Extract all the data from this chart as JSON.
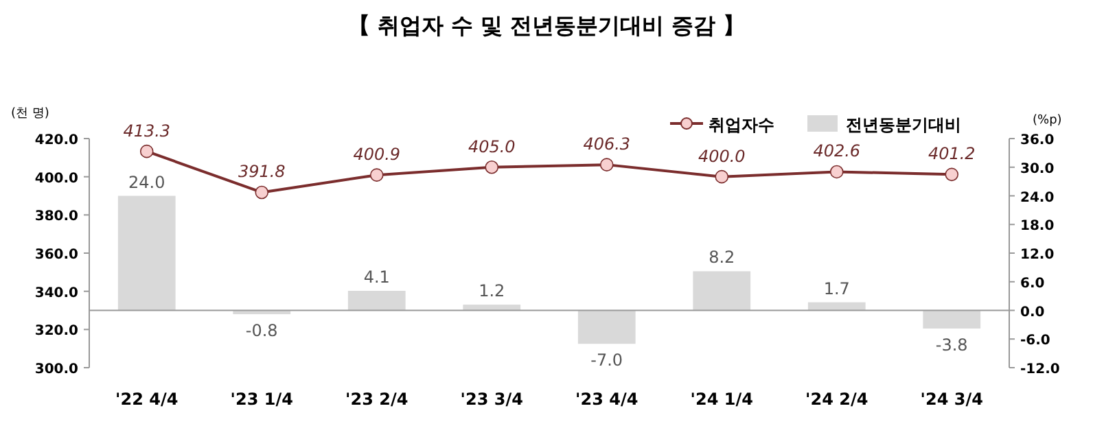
{
  "chart_data": {
    "type": "bar",
    "title": "【 취업자 수 및 전년동분기대비 증감 】",
    "ylabel": "(천 명)",
    "y2label": "(%p)",
    "categories": [
      "'22 4/4",
      "'23 1/4",
      "'23 2/4",
      "'23 3/4",
      "'23 4/4",
      "'24 1/4",
      "'24 2/4",
      "'24 3/4"
    ],
    "series": [
      {
        "name": "취업자수",
        "type": "line",
        "color": "#7b2d2d",
        "marker": "circle",
        "values": [
          413.3,
          391.8,
          400.9,
          405.0,
          406.3,
          400.0,
          402.6,
          401.2
        ],
        "value_labels": [
          "413.3",
          "391.8",
          "400.9",
          "405.0",
          "406.3",
          "400.0",
          "402.6",
          "401.2"
        ]
      },
      {
        "name": "전년동분기대비",
        "axis": "y2",
        "color": "#d9d9d9",
        "values": [
          24.0,
          -0.8,
          4.1,
          1.2,
          -7.0,
          8.2,
          1.7,
          -3.8
        ],
        "value_labels": [
          "24.0",
          "-0.8",
          "4.1",
          "1.2",
          "-7.0",
          "8.2",
          "1.7",
          "-3.8"
        ]
      }
    ],
    "ylim": [
      300,
      420
    ],
    "yticks": [
      {
        "value": 300,
        "label": "300.0"
      },
      {
        "value": 320,
        "label": "320.0"
      },
      {
        "value": 340,
        "label": "340.0"
      },
      {
        "value": 360,
        "label": "360.0"
      },
      {
        "value": 380,
        "label": "380.0"
      },
      {
        "value": 400,
        "label": "400.0"
      },
      {
        "value": 420,
        "label": "420.0"
      }
    ],
    "y2lim": [
      -12,
      36
    ],
    "y2ticks": [
      {
        "value": -12,
        "label": "-12.0"
      },
      {
        "value": -6,
        "label": "-6.0"
      },
      {
        "value": 0,
        "label": "0.0"
      },
      {
        "value": 6,
        "label": "6.0"
      },
      {
        "value": 12,
        "label": "12.0"
      },
      {
        "value": 18,
        "label": "18.0"
      },
      {
        "value": 24,
        "label": "24.0"
      },
      {
        "value": 30,
        "label": "30.0"
      },
      {
        "value": 36,
        "label": "36.0"
      }
    ],
    "ref_lines": [
      {
        "axis": "y2",
        "value": 0,
        "color": "#999999"
      }
    ],
    "legend": "top right"
  }
}
